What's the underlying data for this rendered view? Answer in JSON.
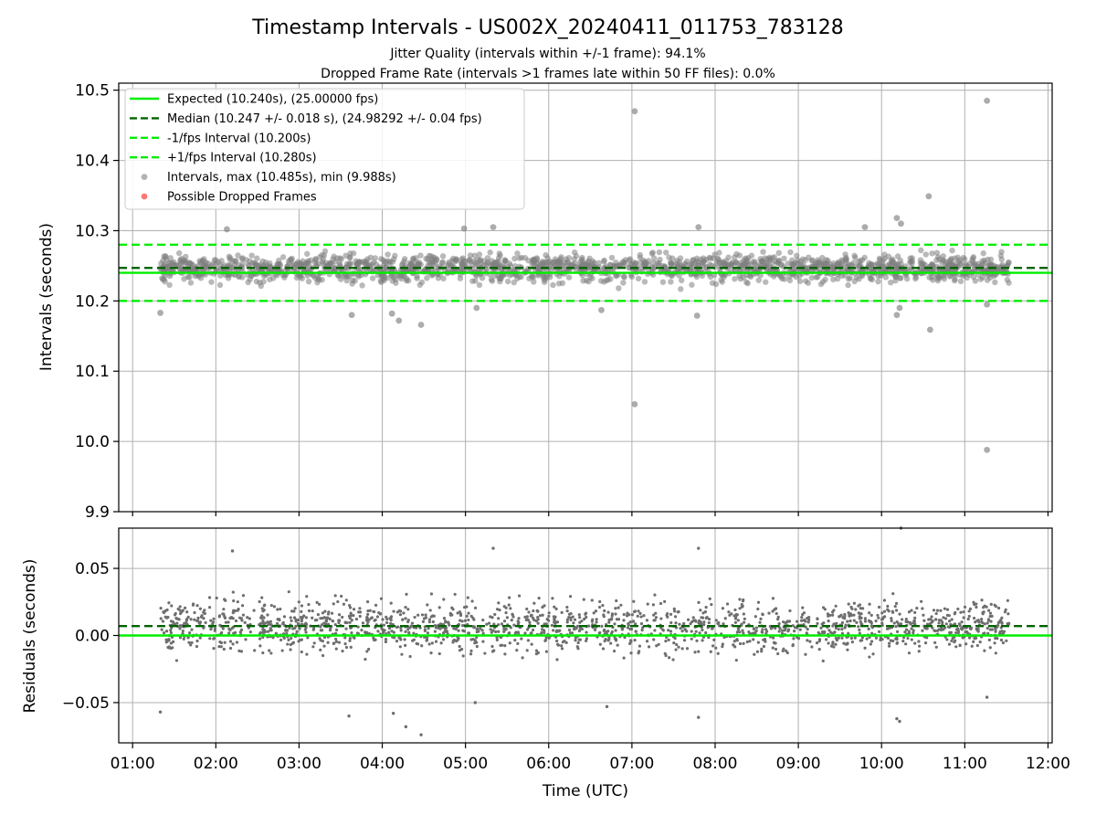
{
  "title": "Timestamp Intervals - US002X_20240411_011753_783128",
  "subtitles": [
    "Jitter Quality (intervals within +/-1 frame): 94.1%",
    "Dropped Frame Rate (intervals >1 frames late within 50 FF files): 0.0%"
  ],
  "colors": {
    "expected": "#00ee00",
    "median": "#006400",
    "interval_bound": "#00ee00",
    "points": "#808080",
    "dropped": "#ff5555",
    "grid": "#b0b0b0"
  },
  "chart_data": [
    {
      "type": "scatter",
      "panel": "intervals",
      "xlabel": "",
      "ylabel": "Intervals (seconds)",
      "xlim": [
        "00:50",
        "12:03"
      ],
      "ylim": [
        9.9,
        10.51
      ],
      "y_ticks": [
        "9.9",
        "10.0",
        "10.1",
        "10.2",
        "10.3",
        "10.4",
        "10.5"
      ],
      "grid": true,
      "legend_placement": "top-left",
      "legend": [
        {
          "label": "Expected (10.240s), (25.00000 fps)",
          "style": "solid-line"
        },
        {
          "label": "Median (10.247 +/- 0.018 s), (24.98292 +/- 0.04 fps)",
          "style": "dashed-dark-line"
        },
        {
          "label": "-1/fps Interval (10.200s)",
          "style": "dashed-line"
        },
        {
          "label": "+1/fps Interval (10.280s)",
          "style": "dashed-line"
        },
        {
          "label": "Intervals, max (10.485s), min (9.988s)",
          "style": "gray-marker"
        },
        {
          "label": "Possible Dropped Frames",
          "style": "red-marker"
        }
      ],
      "reference_lines": {
        "expected": 10.24,
        "median": 10.247,
        "minus_one_frame": 10.2,
        "plus_one_frame": 10.28
      },
      "series_range": {
        "start": "01:20",
        "end": "11:32",
        "count": 3600,
        "center": 10.247,
        "band": [
          10.2,
          10.3
        ]
      },
      "notable_points": [
        {
          "x": "01:20",
          "y": 10.183
        },
        {
          "x": "02:08",
          "y": 10.302
        },
        {
          "x": "03:38",
          "y": 10.18
        },
        {
          "x": "04:07",
          "y": 10.182
        },
        {
          "x": "04:12",
          "y": 10.172
        },
        {
          "x": "04:28",
          "y": 10.166
        },
        {
          "x": "04:59",
          "y": 10.303
        },
        {
          "x": "05:08",
          "y": 10.19
        },
        {
          "x": "05:20",
          "y": 10.305
        },
        {
          "x": "06:38",
          "y": 10.187
        },
        {
          "x": "07:02",
          "y": 10.47
        },
        {
          "x": "07:02",
          "y": 10.053
        },
        {
          "x": "07:47",
          "y": 10.179
        },
        {
          "x": "07:48",
          "y": 10.305
        },
        {
          "x": "09:48",
          "y": 10.305
        },
        {
          "x": "10:11",
          "y": 10.318
        },
        {
          "x": "10:11",
          "y": 10.18
        },
        {
          "x": "10:13",
          "y": 10.19
        },
        {
          "x": "10:14",
          "y": 10.31
        },
        {
          "x": "10:34",
          "y": 10.349
        },
        {
          "x": "10:35",
          "y": 10.159
        },
        {
          "x": "11:16",
          "y": 10.485
        },
        {
          "x": "11:16",
          "y": 9.988
        },
        {
          "x": "11:16",
          "y": 10.195
        }
      ]
    },
    {
      "type": "scatter",
      "panel": "residuals",
      "xlabel": "Time (UTC)",
      "ylabel": "Residuals (seconds)",
      "xlim": [
        "00:50",
        "12:03"
      ],
      "ylim": [
        -0.08,
        0.08
      ],
      "y_ticks": [
        "−0.05",
        "0.00",
        "0.05"
      ],
      "x_ticks": [
        "01:00",
        "02:00",
        "03:00",
        "04:00",
        "05:00",
        "06:00",
        "07:00",
        "08:00",
        "09:00",
        "10:00",
        "11:00",
        "12:00"
      ],
      "grid": true,
      "reference_lines": {
        "expected": 0.0,
        "median": 0.007
      },
      "series_range": {
        "start": "01:20",
        "end": "11:32",
        "count": 3600,
        "band": [
          -0.07,
          0.07
        ]
      },
      "notable_points": [
        {
          "x": "01:20",
          "y": -0.057
        },
        {
          "x": "02:12",
          "y": 0.063
        },
        {
          "x": "03:36",
          "y": -0.06
        },
        {
          "x": "04:08",
          "y": -0.058
        },
        {
          "x": "04:17",
          "y": -0.068
        },
        {
          "x": "04:28",
          "y": -0.074
        },
        {
          "x": "05:07",
          "y": -0.05
        },
        {
          "x": "05:20",
          "y": 0.065
        },
        {
          "x": "06:42",
          "y": -0.053
        },
        {
          "x": "07:48",
          "y": -0.061
        },
        {
          "x": "07:48",
          "y": 0.065
        },
        {
          "x": "10:11",
          "y": -0.062
        },
        {
          "x": "10:13",
          "y": -0.064
        },
        {
          "x": "10:14",
          "y": 0.08
        },
        {
          "x": "11:16",
          "y": -0.046
        }
      ]
    }
  ]
}
